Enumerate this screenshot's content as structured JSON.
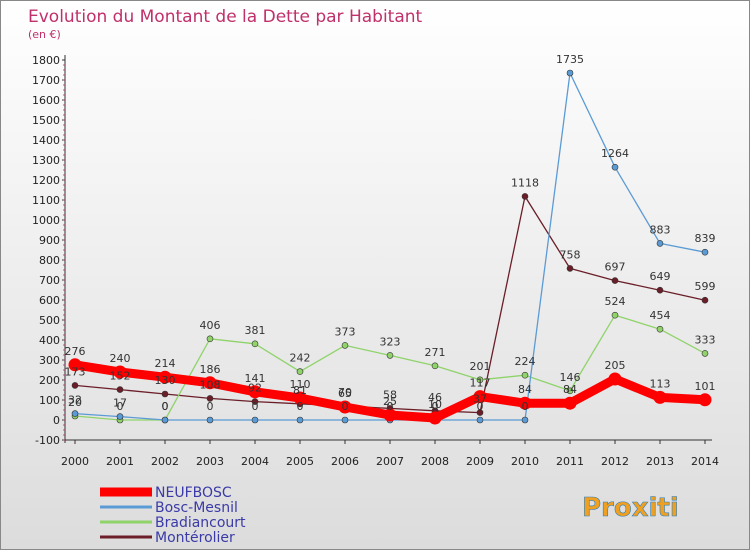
{
  "chart_data": {
    "type": "line",
    "title": "Evolution du Montant de la Dette par Habitant",
    "subtitle": "(en €)",
    "xlabel": "",
    "ylabel": "",
    "ylim": [
      -100,
      1800
    ],
    "yticks": [
      -100,
      0,
      100,
      200,
      300,
      400,
      500,
      600,
      700,
      800,
      900,
      1000,
      1100,
      1200,
      1300,
      1400,
      1500,
      1600,
      1700,
      1800
    ],
    "x": [
      "2000",
      "2001",
      "2002",
      "2003",
      "2004",
      "2005",
      "2006",
      "2007",
      "2008",
      "2009",
      "2010",
      "2011",
      "2012",
      "2013",
      "2014"
    ],
    "grid": false,
    "legend_position": "bottom-left",
    "series": [
      {
        "name": "NEUFBOSC",
        "color": "#ff0000",
        "values": [
          276,
          240,
          214,
          186,
          141,
          110,
          65,
          25,
          10,
          117,
          84,
          84,
          205,
          113,
          101
        ]
      },
      {
        "name": "Bosc-Mesnil",
        "color": "#5b9bd5",
        "values": [
          32,
          17,
          0,
          0,
          0,
          0,
          0,
          0,
          0,
          0,
          0,
          1735,
          1264,
          883,
          839
        ]
      },
      {
        "name": "Bradiancourt",
        "color": "#8fd36a",
        "values": [
          20,
          0,
          0,
          406,
          381,
          242,
          373,
          323,
          271,
          201,
          224,
          146,
          524,
          454,
          333
        ]
      },
      {
        "name": "Montérolier",
        "color": "#6b1e28",
        "values": [
          173,
          152,
          130,
          108,
          92,
          81,
          70,
          58,
          46,
          37,
          1118,
          758,
          697,
          649,
          599
        ]
      }
    ]
  },
  "logo_text": "Proxiti"
}
